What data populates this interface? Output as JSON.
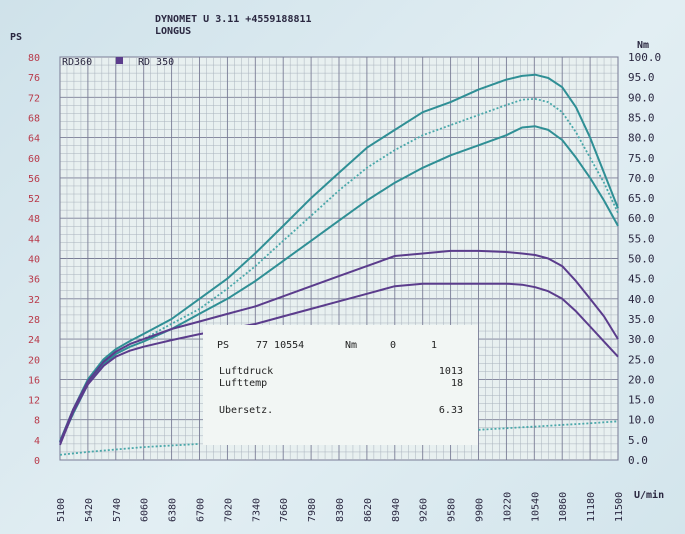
{
  "header": {
    "line1": "DYNOMET U 3.11 +4559188811",
    "line2": "LONGUS"
  },
  "chart_data": {
    "type": "line",
    "left_axis": {
      "unit": "PS",
      "ticks": [
        0,
        4,
        8,
        12,
        16,
        20,
        24,
        28,
        32,
        36,
        40,
        44,
        48,
        52,
        56,
        60,
        64,
        68,
        72,
        76,
        80
      ],
      "range": [
        0,
        80
      ]
    },
    "right_axis": {
      "unit": "Nm",
      "ticks": [
        "0.0",
        "5.0",
        "10.0",
        "15.0",
        "20.0",
        "25.0",
        "30.0",
        "35.0",
        "40.0",
        "45.0",
        "50.0",
        "55.0",
        "60.0",
        "65.0",
        "70.0",
        "75.0",
        "80.0",
        "85.0",
        "90.0",
        "95.0",
        "100.0"
      ],
      "range": [
        0,
        100
      ]
    },
    "x_axis": {
      "unit": "U/min",
      "ticks": [
        5100,
        5420,
        5740,
        6060,
        6380,
        6700,
        7020,
        7340,
        7660,
        7980,
        8300,
        8620,
        8940,
        9260,
        9580,
        9900,
        10220,
        10540,
        10860,
        11180,
        11500
      ],
      "range": [
        5100,
        11500
      ]
    },
    "legend": [
      "RD360",
      "RD 350"
    ],
    "series": [
      {
        "name": "RD360",
        "axis": "Nm",
        "style": "solid",
        "color": "#2f8f95",
        "x": [
          5100,
          5250,
          5420,
          5600,
          5740,
          5900,
          6060,
          6380,
          6700,
          7020,
          7340,
          7660,
          7980,
          8300,
          8620,
          8940,
          9260,
          9580,
          9900,
          10220,
          10400,
          10550,
          10700,
          10860,
          11020,
          11180,
          11340,
          11500
        ],
        "y": [
          4.7,
          12.5,
          20.0,
          25.0,
          27.5,
          29.5,
          31.3,
          35.0,
          40.0,
          45.0,
          51.3,
          58.1,
          65.0,
          71.3,
          77.5,
          81.9,
          86.3,
          88.8,
          91.9,
          94.4,
          95.3,
          95.6,
          94.8,
          92.5,
          87.5,
          80.0,
          71.3,
          62.5
        ]
      },
      {
        "name": "",
        "axis": "Nm",
        "style": "dotted",
        "color": "#4aa8aa",
        "x": [
          5100,
          5250,
          5420,
          5600,
          5740,
          5900,
          6060,
          6380,
          6700,
          7020,
          7340,
          7660,
          7980,
          8300,
          8620,
          8940,
          9260,
          9580,
          9900,
          10220,
          10400,
          10550,
          10700,
          10860,
          11020,
          11180,
          11340,
          11500
        ],
        "y": [
          4.5,
          12.0,
          19.4,
          24.4,
          26.9,
          28.8,
          30.0,
          33.8,
          37.5,
          42.5,
          48.1,
          54.4,
          60.6,
          66.9,
          72.5,
          76.9,
          80.6,
          83.1,
          85.6,
          88.1,
          89.4,
          89.6,
          88.8,
          86.3,
          81.3,
          75.0,
          68.8,
          61.3
        ]
      },
      {
        "name": "",
        "axis": "Nm",
        "style": "solid",
        "color": "#2f8f95",
        "x": [
          5100,
          5250,
          5420,
          5600,
          5740,
          5900,
          6060,
          6380,
          6700,
          7020,
          7340,
          7660,
          7980,
          8300,
          8620,
          8940,
          9260,
          9580,
          9900,
          10220,
          10400,
          10550,
          10700,
          10860,
          11020,
          11180,
          11340,
          11500
        ],
        "y": [
          4.3,
          11.5,
          18.8,
          23.8,
          26.3,
          28.1,
          29.4,
          32.5,
          36.3,
          40.0,
          44.4,
          49.4,
          54.4,
          59.4,
          64.4,
          68.8,
          72.5,
          75.6,
          78.1,
          80.6,
          82.5,
          82.8,
          81.9,
          79.4,
          75.0,
          70.0,
          64.4,
          58.1
        ]
      },
      {
        "name": "",
        "axis": "PS",
        "style": "solid",
        "color": "#5b3c8c",
        "x": [
          5100,
          5250,
          5420,
          5600,
          5740,
          5900,
          6060,
          6380,
          6700,
          7020,
          7340,
          7660,
          7980,
          8300,
          8620,
          8940,
          9260,
          9580,
          9900,
          10220,
          10400,
          10550,
          10700,
          10860,
          11020,
          11180,
          11340,
          11500
        ],
        "y": [
          3.5,
          10.0,
          15.6,
          19.5,
          21.5,
          23.0,
          24.0,
          26.0,
          27.5,
          29.0,
          30.5,
          32.5,
          34.5,
          36.5,
          38.5,
          40.5,
          41.0,
          41.5,
          41.5,
          41.3,
          41.0,
          40.7,
          40.0,
          38.5,
          35.5,
          32.0,
          28.5,
          24.0
        ]
      },
      {
        "name": "",
        "axis": "PS",
        "style": "solid",
        "color": "#5b3c8c",
        "x": [
          5100,
          5250,
          5420,
          5600,
          5740,
          5900,
          6060,
          6380,
          6700,
          7020,
          7340,
          7660,
          7980,
          8300,
          8620,
          8940,
          9260,
          9580,
          9900,
          10220,
          10400,
          10550,
          10700,
          10860,
          11020,
          11180,
          11340,
          11500
        ],
        "y": [
          3.0,
          9.5,
          15.0,
          18.7,
          20.5,
          21.7,
          22.5,
          23.8,
          25.0,
          26.0,
          27.0,
          28.5,
          30.0,
          31.5,
          33.0,
          34.5,
          35.0,
          35.0,
          35.0,
          35.0,
          34.8,
          34.3,
          33.5,
          32.0,
          29.5,
          26.5,
          23.5,
          20.5
        ]
      },
      {
        "name": "",
        "axis": "Nm",
        "style": "dotted",
        "color": "#4aa8aa",
        "x": [
          5100,
          5420,
          5740,
          6060,
          6380,
          6700
        ],
        "y": [
          1.3,
          2.0,
          2.6,
          3.2,
          3.6,
          4.0
        ]
      },
      {
        "name": "",
        "axis": "Nm",
        "style": "dotted",
        "color": "#4aa8aa",
        "x": [
          9900,
          10220,
          10540,
          10860,
          11180,
          11500
        ],
        "y": [
          7.5,
          7.9,
          8.3,
          8.7,
          9.1,
          9.6
        ]
      }
    ]
  },
  "info_box": {
    "line1": {
      "label1": "PS",
      "val1": "77 10554",
      "label2": "Nm",
      "val2": "0",
      "val3": "1"
    },
    "rows": [
      {
        "label": "Luftdruck",
        "value": "1013"
      },
      {
        "label": "Lufttemp",
        "value": "18"
      },
      {
        "label": "Ubersetz.",
        "value": "6.33"
      }
    ]
  }
}
